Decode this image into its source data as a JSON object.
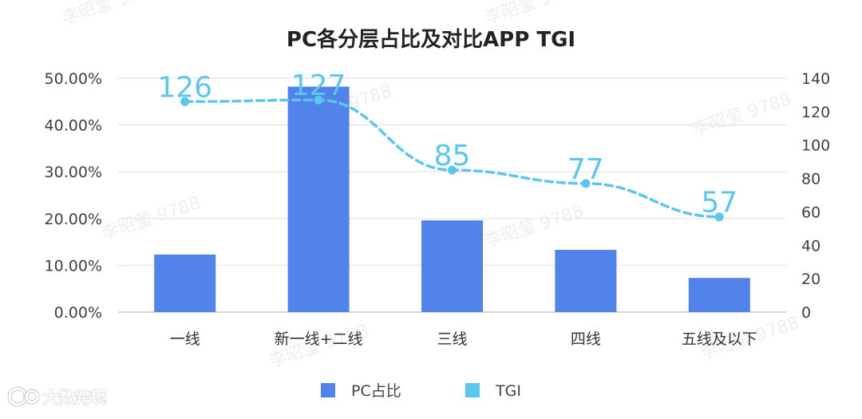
{
  "chart_data": {
    "type": "bar",
    "title": "PC各分层占比及对比APP TGI",
    "categories": [
      "一线",
      "新一线+二线",
      "三线",
      "四线",
      "五线及以下"
    ],
    "series": [
      {
        "name": "PC占比",
        "type": "bar",
        "axis": "left",
        "values": [
          12.3,
          48.2,
          19.6,
          13.3,
          7.3
        ],
        "color": "#5283ea"
      },
      {
        "name": "TGI",
        "type": "line",
        "axis": "right",
        "values": [
          126,
          127,
          85,
          77,
          57
        ],
        "color": "#5cc6ec",
        "style": "dashed-smooth",
        "data_labels": [
          "126",
          "127",
          "85",
          "77",
          "57"
        ]
      }
    ],
    "y_left": {
      "min": 0,
      "max": 50,
      "ticks": [
        "0.00%",
        "10.00%",
        "20.00%",
        "30.00%",
        "40.00%",
        "50.00%"
      ]
    },
    "y_right": {
      "min": 0,
      "max": 140,
      "ticks": [
        "0",
        "20",
        "40",
        "60",
        "80",
        "100",
        "120",
        "140"
      ]
    },
    "grid": true,
    "legend_position": "bottom"
  },
  "watermark": "李昭莹 9788",
  "logo": {
    "text": "大数跨境"
  }
}
